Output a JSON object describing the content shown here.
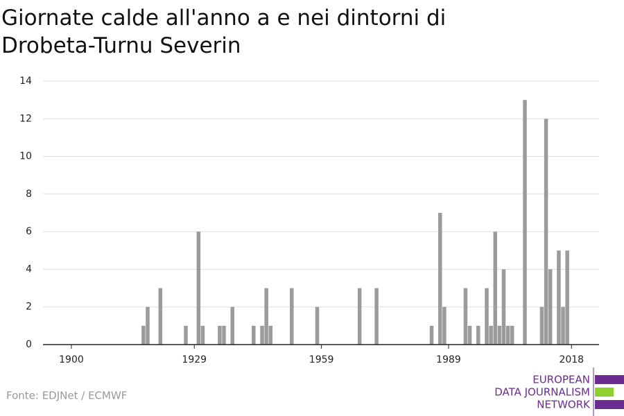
{
  "chart_data": {
    "type": "bar",
    "title": "Giornate calde all'anno a e nei dintorni di Drobeta-Turnu Severin",
    "x": [
      1917,
      1918,
      1921,
      1927,
      1930,
      1931,
      1935,
      1936,
      1938,
      1943,
      1945,
      1946,
      1947,
      1952,
      1958,
      1968,
      1972,
      1985,
      1987,
      1988,
      1993,
      1994,
      1996,
      1998,
      1999,
      2000,
      2001,
      2002,
      2003,
      2004,
      2007,
      2011,
      2012,
      2013,
      2015,
      2016,
      2017
    ],
    "values": [
      1,
      2,
      3,
      1,
      6,
      1,
      1,
      1,
      2,
      1,
      1,
      3,
      1,
      3,
      2,
      3,
      3,
      1,
      7,
      2,
      3,
      1,
      1,
      3,
      1,
      6,
      1,
      4,
      1,
      1,
      13,
      2,
      12,
      4,
      5,
      2,
      5
    ],
    "color": "#9b9b9b",
    "xlim": [
      1893.3,
      2024.5
    ],
    "xticks": [
      1900,
      1929,
      1959,
      1989,
      2018
    ],
    "ylim": [
      0,
      14
    ],
    "yticks": [
      0,
      2,
      4,
      6,
      8,
      10,
      12,
      14
    ],
    "grid": true,
    "source": "Fonte: EDJNet / ECMWF",
    "logo": [
      "EUROPEAN",
      "DATA JOURNALISM",
      "NETWORK"
    ]
  }
}
